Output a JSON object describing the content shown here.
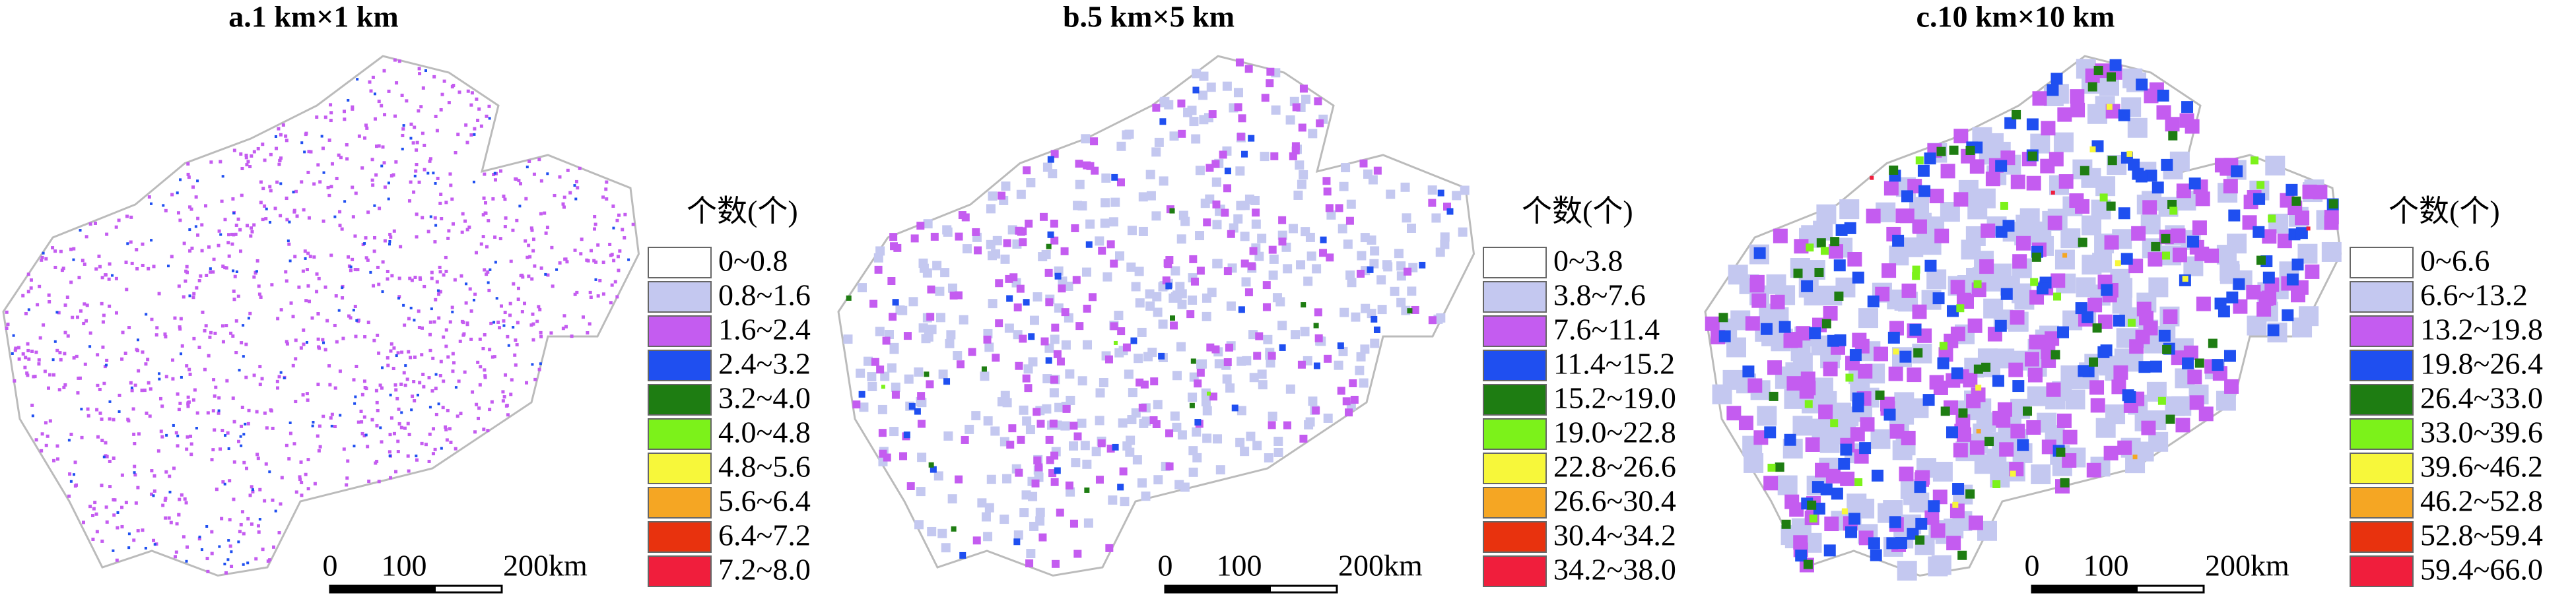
{
  "panels": [
    {
      "title": "a.1 km×1 km",
      "legend_title": "个数(个)",
      "legend": [
        {
          "label": "0~0.8",
          "color": "#ffffff"
        },
        {
          "label": "0.8~1.6",
          "color": "#c4c8f0"
        },
        {
          "label": "1.6~2.4",
          "color": "#c45cf0"
        },
        {
          "label": "2.4~3.2",
          "color": "#1f4ff0"
        },
        {
          "label": "3.2~4.0",
          "color": "#1e7d12"
        },
        {
          "label": "4.0~4.8",
          "color": "#7cf21a"
        },
        {
          "label": "4.8~5.6",
          "color": "#f7f73a"
        },
        {
          "label": "5.6~6.4",
          "color": "#f5a623"
        },
        {
          "label": "6.4~7.2",
          "color": "#e8320e"
        },
        {
          "label": "7.2~8.0",
          "color": "#f01e3c"
        }
      ],
      "scale_bar": [
        "0",
        "100",
        "200km"
      ]
    },
    {
      "title": "b.5 km×5 km",
      "legend_title": "个数(个)",
      "legend": [
        {
          "label": "0~3.8",
          "color": "#ffffff"
        },
        {
          "label": "3.8~7.6",
          "color": "#c4c8f0"
        },
        {
          "label": "7.6~11.4",
          "color": "#c45cf0"
        },
        {
          "label": "11.4~15.2",
          "color": "#1f4ff0"
        },
        {
          "label": "15.2~19.0",
          "color": "#1e7d12"
        },
        {
          "label": "19.0~22.8",
          "color": "#7cf21a"
        },
        {
          "label": "22.8~26.6",
          "color": "#f7f73a"
        },
        {
          "label": "26.6~30.4",
          "color": "#f5a623"
        },
        {
          "label": "30.4~34.2",
          "color": "#e8320e"
        },
        {
          "label": "34.2~38.0",
          "color": "#f01e3c"
        }
      ],
      "scale_bar": [
        "0",
        "100",
        "200km"
      ]
    },
    {
      "title": "c.10 km×10 km",
      "legend_title": "个数(个)",
      "legend": [
        {
          "label": "0~6.6",
          "color": "#ffffff"
        },
        {
          "label": "6.6~13.2",
          "color": "#c4c8f0"
        },
        {
          "label": "13.2~19.8",
          "color": "#c45cf0"
        },
        {
          "label": "19.8~26.4",
          "color": "#1f4ff0"
        },
        {
          "label": "26.4~33.0",
          "color": "#1e7d12"
        },
        {
          "label": "33.0~39.6",
          "color": "#7cf21a"
        },
        {
          "label": "39.6~46.2",
          "color": "#f7f73a"
        },
        {
          "label": "46.2~52.8",
          "color": "#f5a623"
        },
        {
          "label": "52.8~59.4",
          "color": "#e8320e"
        },
        {
          "label": "59.4~66.0",
          "color": "#f01e3c"
        }
      ],
      "scale_bar": [
        "0",
        "100",
        "200km"
      ]
    }
  ]
}
